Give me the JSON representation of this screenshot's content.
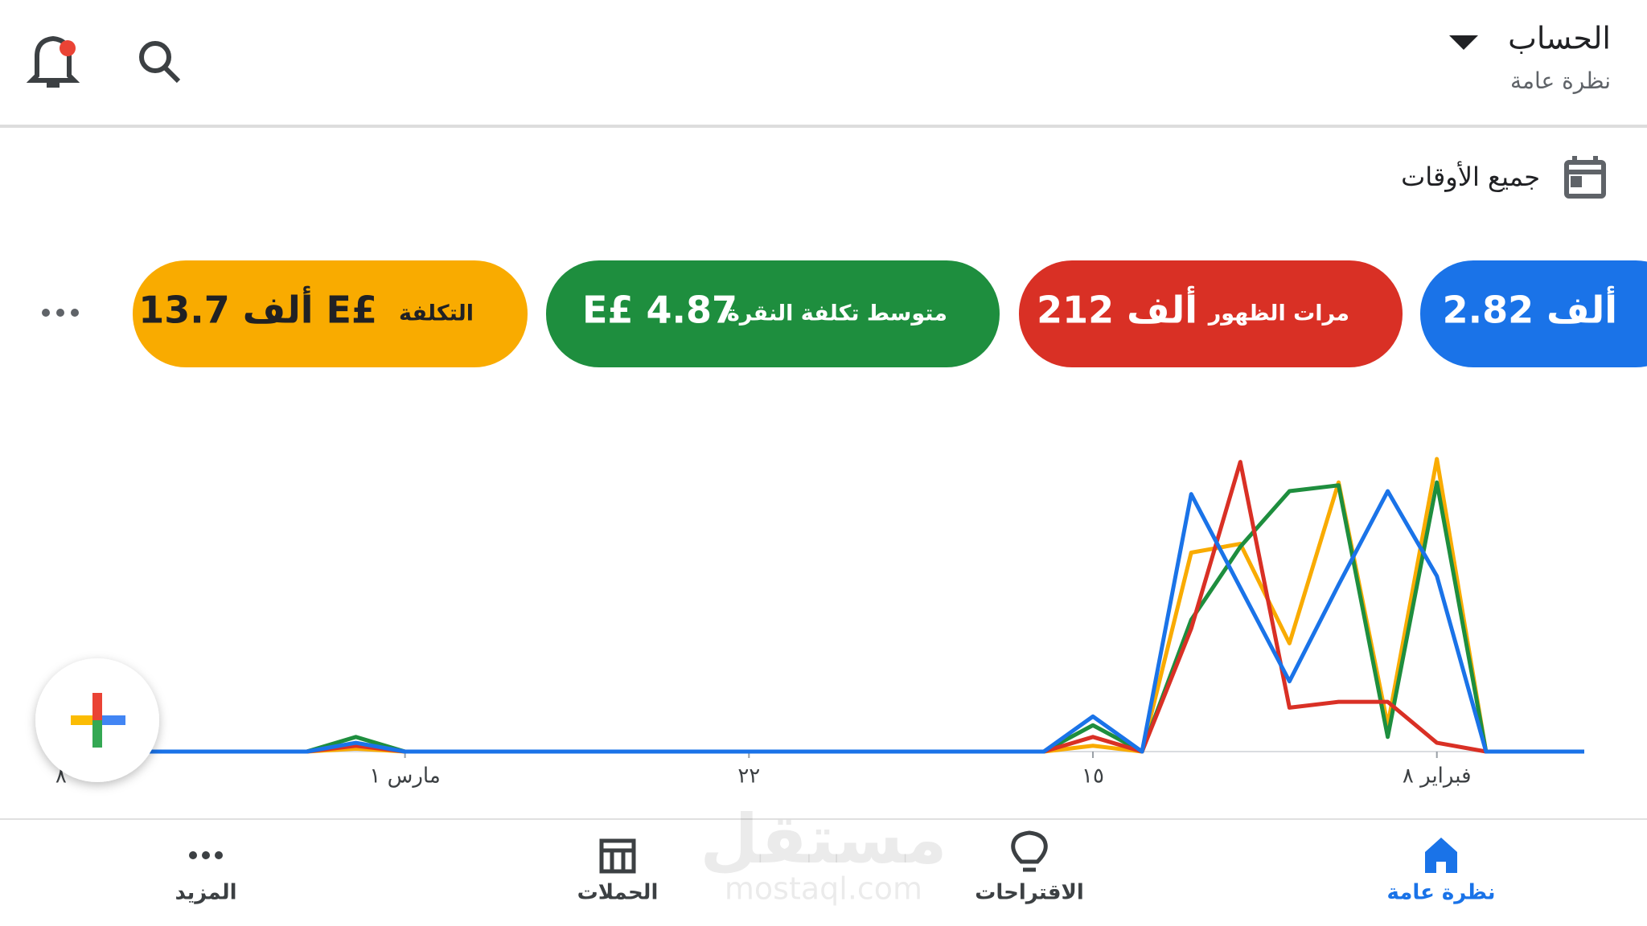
{
  "header": {
    "title": "الحساب",
    "subtitle": "نظرة عامة"
  },
  "date_range": "جميع الأوقات",
  "metrics": [
    {
      "value": "2.82 ألف",
      "color": "#1a73e8"
    },
    {
      "label": "مرات الظهور",
      "value": "212 ألف",
      "color": "#d93025"
    },
    {
      "label": "متوسط تكلفة النقرة",
      "value": "E£ 4.87",
      "color": "#1e8e3e"
    },
    {
      "label": "التكلفة",
      "value": "13.7 ألف E£",
      "color": "#f9ab00"
    }
  ],
  "chart_data": {
    "type": "line",
    "categories": [
      null,
      null,
      null,
      "فبراير ٨",
      null,
      null,
      null,
      null,
      null,
      null,
      "١٥",
      null,
      null,
      null,
      null,
      null,
      null,
      "٢٢",
      null,
      null,
      null,
      null,
      null,
      null,
      "مارس ١",
      null,
      null,
      null,
      null,
      null,
      null,
      "٨"
    ],
    "series": [
      {
        "name": "2.82 ألف",
        "color": "#1a73e8",
        "values": [
          0,
          0,
          0,
          60,
          89,
          57,
          24,
          56,
          88,
          0,
          12,
          0,
          0,
          0,
          0,
          0,
          0,
          0,
          0,
          0,
          0,
          0,
          0,
          0,
          0,
          3,
          0,
          0,
          0,
          0,
          0,
          0
        ]
      },
      {
        "name": "مرات الظهور",
        "color": "#d93025",
        "values": [
          0,
          0,
          0,
          3,
          17,
          17,
          15,
          99,
          42,
          0,
          5,
          0,
          0,
          0,
          0,
          0,
          0,
          0,
          0,
          0,
          0,
          0,
          0,
          0,
          0,
          2,
          0,
          0,
          0,
          0,
          0,
          0
        ]
      },
      {
        "name": "متوسط تكلفة النقرة",
        "color": "#1e8e3e",
        "values": [
          0,
          0,
          0,
          92,
          5,
          91,
          89,
          70,
          45,
          0,
          9,
          0,
          0,
          0,
          0,
          0,
          0,
          0,
          0,
          0,
          0,
          0,
          0,
          0,
          0,
          5,
          0,
          0,
          0,
          0,
          0,
          0
        ]
      },
      {
        "name": "التكلفة",
        "color": "#f9ab00",
        "values": [
          0,
          0,
          0,
          100,
          9,
          92,
          37,
          71,
          68,
          0,
          2,
          0,
          0,
          0,
          0,
          0,
          0,
          0,
          0,
          0,
          0,
          0,
          0,
          0,
          0,
          1,
          0,
          0,
          0,
          0,
          0,
          0
        ]
      }
    ],
    "ylim": [
      0,
      100
    ]
  },
  "nav": [
    {
      "label": "نظرة عامة",
      "active": true
    },
    {
      "label": "الاقتراحات"
    },
    {
      "label": "الحملات"
    },
    {
      "label": "المزيد"
    }
  ],
  "watermark": {
    "arabic": "مستقل",
    "latin": "mostaql.com"
  }
}
